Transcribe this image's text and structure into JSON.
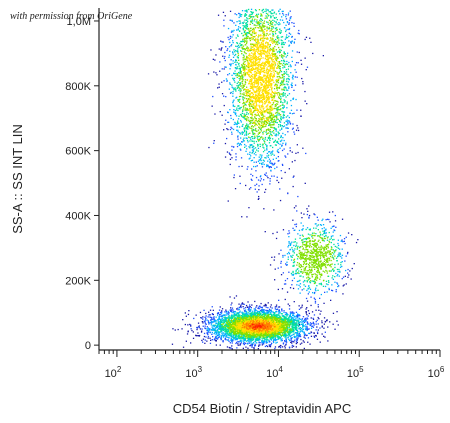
{
  "watermark": "with permission from OriGene",
  "chart_data": {
    "type": "scatter",
    "title": "",
    "xlabel": "CD54 Biotin / Streptavidin APC",
    "ylabel": "SS-A :: SS INT LIN",
    "xscale": "log",
    "xlim": [
      60,
      1000000
    ],
    "ylim": [
      -15000,
      1040000
    ],
    "x_ticks": [
      {
        "value": 100,
        "base": "10",
        "exp": "2"
      },
      {
        "value": 1000,
        "base": "10",
        "exp": "3"
      },
      {
        "value": 10000,
        "base": "10",
        "exp": "4"
      },
      {
        "value": 100000,
        "base": "10",
        "exp": "5"
      },
      {
        "value": 1000000,
        "base": "10",
        "exp": "6"
      }
    ],
    "y_ticks": [
      {
        "value": 0,
        "label": "0"
      },
      {
        "value": 200000,
        "label": "200K"
      },
      {
        "value": 400000,
        "label": "400K"
      },
      {
        "value": 600000,
        "label": "600K"
      },
      {
        "value": 800000,
        "label": "800K"
      },
      {
        "value": 1000000,
        "label": "1,0M"
      }
    ],
    "populations": [
      {
        "x_center": 5500,
        "x_spread_decades": 0.3,
        "y_center": 60000,
        "y_spread": 25000,
        "events": 4200
      },
      {
        "x_center": 6000,
        "x_spread_decades": 0.2,
        "y_center": 830000,
        "y_spread": 140000,
        "events": 3200
      },
      {
        "x_center": 28000,
        "x_spread_decades": 0.18,
        "y_center": 270000,
        "y_spread": 55000,
        "events": 900
      }
    ],
    "density_colors": [
      "#1a1aa8",
      "#2050ff",
      "#00b0ff",
      "#00e0a0",
      "#80e000",
      "#ffe000",
      "#ff8000",
      "#ff2000"
    ]
  }
}
